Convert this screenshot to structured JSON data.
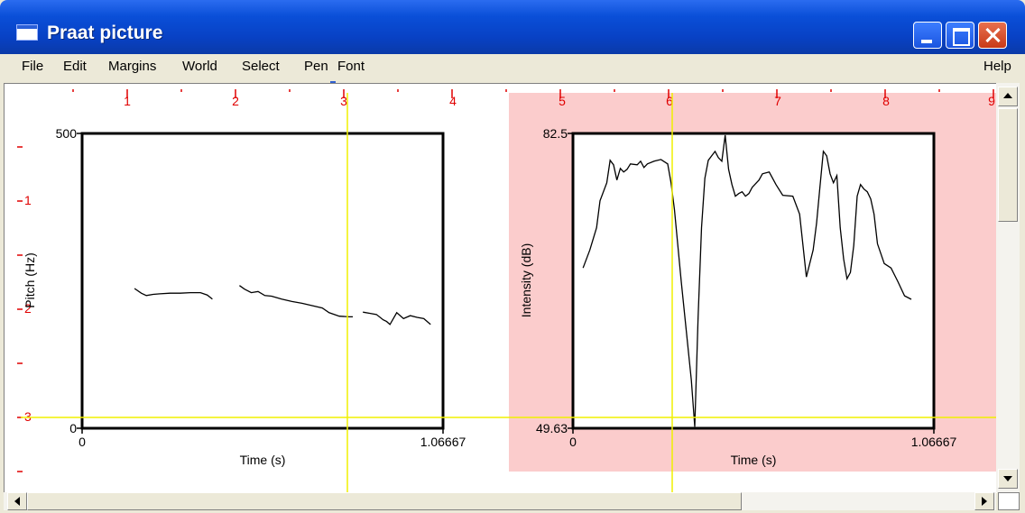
{
  "window": {
    "title": "Praat picture"
  },
  "menu": {
    "file": "File",
    "edit": "Edit",
    "margins": "Margins",
    "world": "World",
    "select": "Select",
    "pen": "Pen",
    "font": "Font",
    "help": "Help"
  },
  "ruler": {
    "top": [
      "1",
      "2",
      "3",
      "4",
      "5",
      "6",
      "7",
      "8",
      "9"
    ],
    "left": [
      "1",
      "2",
      "3"
    ]
  },
  "colors": {
    "ruler": "#e00000",
    "selection": "#fbcccc",
    "cursor": "#f0f000",
    "titlebar": "#0a4fd8"
  },
  "pitch_plot": {
    "ytop": "500",
    "ybottom": "0",
    "xleft": "0",
    "xright": "1.06667",
    "xlabel": "Time (s)",
    "ylabel": "Pitch (Hz)"
  },
  "intensity_plot": {
    "ytop": "82.5",
    "ybottom": "49.63",
    "xleft": "0",
    "xright": "1.06667",
    "xlabel": "Time (s)",
    "ylabel": "Intensity (dB)"
  },
  "chart_data": [
    {
      "type": "line",
      "xlabel": "Time (s)",
      "ylabel": "Pitch (Hz)",
      "xlim": [
        0,
        1.06667
      ],
      "ylim": [
        0,
        500
      ],
      "series": [
        {
          "x": [
            0.155,
            0.175,
            0.19,
            0.21,
            0.23,
            0.26,
            0.29,
            0.32,
            0.35,
            0.37,
            0.385
          ],
          "values": [
            237,
            229,
            225,
            227,
            228,
            229,
            229,
            230,
            230,
            226,
            219
          ]
        },
        {
          "x": [
            0.465,
            0.48,
            0.5,
            0.52,
            0.54,
            0.56,
            0.59,
            0.62,
            0.65,
            0.68,
            0.71,
            0.73,
            0.76,
            0.79,
            0.8
          ],
          "values": [
            242,
            236,
            230,
            232,
            225,
            224,
            219,
            215,
            212,
            208,
            204,
            196,
            190,
            189,
            189
          ]
        },
        {
          "x": [
            0.83,
            0.85,
            0.87,
            0.89,
            0.9,
            0.91,
            0.93,
            0.95,
            0.97,
            0.99,
            1.01,
            1.03
          ],
          "values": [
            197,
            195,
            193,
            184,
            181,
            176,
            196,
            186,
            191,
            188,
            186,
            176
          ]
        }
      ]
    },
    {
      "type": "line",
      "xlabel": "Time (s)",
      "ylabel": "Intensity (dB)",
      "xlim": [
        0,
        1.06667
      ],
      "ylim": [
        49.63,
        82.5
      ],
      "series": [
        {
          "x": [
            0.03,
            0.05,
            0.07,
            0.08,
            0.1,
            0.11,
            0.12,
            0.13,
            0.14,
            0.15,
            0.16,
            0.17,
            0.19,
            0.2,
            0.21,
            0.22,
            0.24,
            0.26,
            0.28,
            0.29,
            0.3,
            0.32,
            0.35,
            0.36,
            0.37,
            0.38,
            0.39,
            0.4,
            0.41,
            0.42,
            0.43,
            0.44,
            0.45,
            0.46,
            0.47,
            0.48,
            0.49,
            0.5,
            0.51,
            0.52,
            0.53,
            0.55,
            0.56,
            0.58,
            0.6,
            0.62,
            0.65,
            0.67,
            0.69,
            0.71,
            0.72,
            0.73,
            0.74,
            0.75,
            0.76,
            0.77,
            0.78,
            0.79,
            0.8,
            0.81,
            0.82,
            0.83,
            0.84,
            0.85,
            0.86,
            0.87,
            0.88,
            0.89,
            0.9,
            0.92,
            0.94,
            0.96,
            0.98,
            1.0
          ],
          "values": [
            67.5,
            69.5,
            72,
            75,
            77,
            79.5,
            79,
            77.3,
            78.6,
            78.2,
            78.5,
            79.1,
            79,
            79.4,
            78.7,
            79.1,
            79.4,
            79.6,
            79.1,
            77,
            74,
            66,
            55,
            49.8,
            62,
            72,
            77.5,
            79.5,
            80,
            80.5,
            79.8,
            79.4,
            82.3,
            78.5,
            76.8,
            75.5,
            75.8,
            76,
            75.5,
            75.8,
            76.5,
            77.3,
            78,
            78.2,
            76.8,
            75.6,
            75.5,
            73.5,
            66.5,
            69.5,
            72.5,
            76.5,
            80.5,
            80,
            78,
            77,
            77.8,
            72,
            68.5,
            66.3,
            67,
            70,
            75.5,
            76.8,
            76.3,
            76,
            75.2,
            73.5,
            70.2,
            68,
            67.5,
            66,
            64.4,
            64
          ]
        }
      ]
    }
  ]
}
